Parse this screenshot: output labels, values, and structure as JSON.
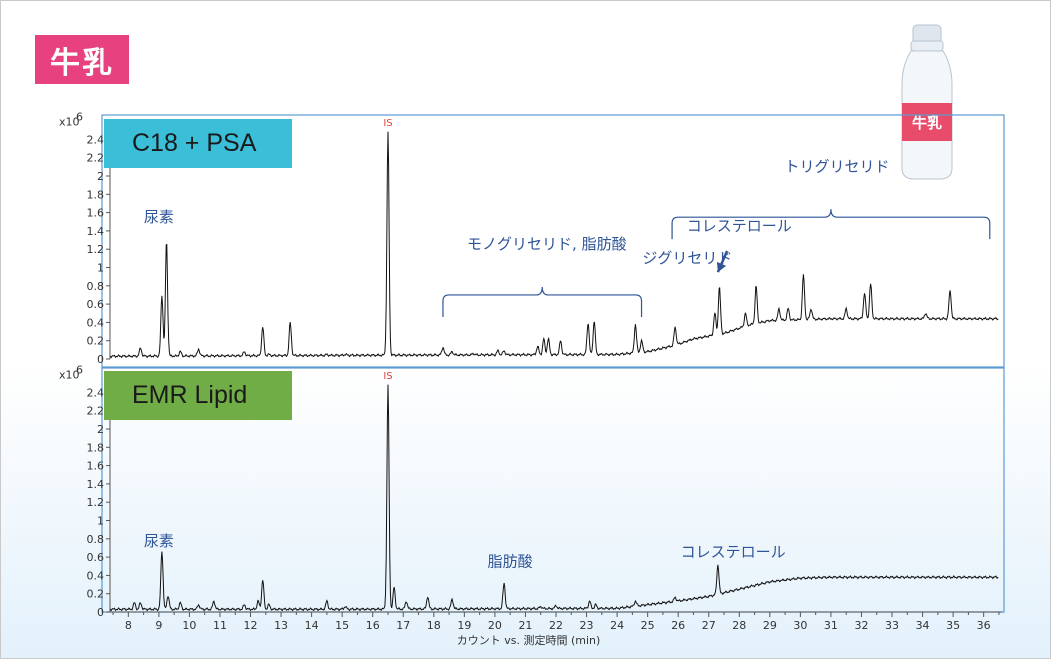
{
  "badge": "牛乳",
  "bottle_label": "牛乳",
  "colors": {
    "badge": "#e7427f",
    "frame": "#5a9bd5",
    "c18_label_bg": "#3bbfd9",
    "emr_label_bg": "#70ad47",
    "annotation": "#2f5597",
    "is_marker": "#e04040"
  },
  "chart_data": [
    {
      "type": "line",
      "method_label": "C18 + PSA",
      "y_exponent_label": "x10",
      "y_exponent_power": "6",
      "ylim": [
        0,
        2.6
      ],
      "yticks": [
        0,
        0.2,
        0.4,
        0.6,
        0.8,
        1,
        1.2,
        1.4,
        1.6,
        1.8,
        2,
        2.2,
        2.4
      ],
      "xlim": [
        7.4,
        36.6
      ],
      "baseline": [
        [
          7.4,
          0.03
        ],
        [
          15,
          0.04
        ],
        [
          24,
          0.05
        ],
        [
          25,
          0.08
        ],
        [
          25.9,
          0.15
        ],
        [
          26.5,
          0.22
        ],
        [
          27.5,
          0.28
        ],
        [
          28.3,
          0.37
        ],
        [
          29,
          0.42
        ],
        [
          31,
          0.44
        ],
        [
          36.5,
          0.44
        ]
      ],
      "peaks": [
        [
          8.4,
          0.12
        ],
        [
          9.1,
          0.7
        ],
        [
          9.25,
          1.3
        ],
        [
          9.7,
          0.08
        ],
        [
          10.3,
          0.11
        ],
        [
          11.8,
          0.08
        ],
        [
          12.4,
          0.35
        ],
        [
          12.6,
          0.05
        ],
        [
          13.3,
          0.4
        ],
        [
          14.5,
          0.05
        ],
        [
          15.1,
          0.05
        ],
        [
          16.5,
          2.48
        ],
        [
          18.3,
          0.13
        ],
        [
          18.6,
          0.08
        ],
        [
          19.3,
          0.06
        ],
        [
          20.1,
          0.09
        ],
        [
          20.3,
          0.09
        ],
        [
          21.4,
          0.14
        ],
        [
          21.6,
          0.22
        ],
        [
          21.75,
          0.22
        ],
        [
          22.15,
          0.2
        ],
        [
          23.05,
          0.4
        ],
        [
          23.25,
          0.42
        ],
        [
          24.6,
          0.38
        ],
        [
          24.8,
          0.2
        ],
        [
          25.9,
          0.35
        ],
        [
          27.2,
          0.5
        ],
        [
          27.35,
          0.79
        ],
        [
          28.2,
          0.5
        ],
        [
          28.55,
          0.8
        ],
        [
          29.3,
          0.55
        ],
        [
          29.6,
          0.55
        ],
        [
          30.1,
          0.92
        ],
        [
          30.35,
          0.55
        ],
        [
          31.5,
          0.55
        ],
        [
          32.1,
          0.72
        ],
        [
          32.3,
          0.82
        ],
        [
          34.1,
          0.5
        ],
        [
          34.9,
          0.75
        ]
      ],
      "is_label": {
        "text": "IS",
        "x": 16.5
      },
      "annotations": [
        {
          "text": "尿素",
          "x": 9.0,
          "y": 1.5
        },
        {
          "text": "モノグリセリド, 脂肪酸",
          "x": 21.7,
          "y": 1.2
        },
        {
          "text": "コレステロール",
          "x": 28.0,
          "y": 1.4
        },
        {
          "text": "ジグリセリド",
          "x": 26.3,
          "y": 1.05
        },
        {
          "text": "トリグリセリド",
          "x": 31.2,
          "y": 2.05
        }
      ],
      "brackets": [
        {
          "x1": 18.3,
          "x2": 24.8,
          "y": 0.7
        },
        {
          "x1": 25.8,
          "x2": 36.2,
          "y": 1.55
        }
      ],
      "arrow": {
        "from": [
          27.6,
          1.18
        ],
        "to": [
          27.3,
          0.95
        ]
      }
    },
    {
      "type": "line",
      "method_label": "EMR Lipid",
      "y_exponent_label": "x10",
      "y_exponent_power": "6",
      "ylim": [
        0,
        2.6
      ],
      "yticks": [
        0,
        0.2,
        0.4,
        0.6,
        0.8,
        1,
        1.2,
        1.4,
        1.6,
        1.8,
        2,
        2.2,
        2.4
      ],
      "xlim": [
        7.4,
        36.6
      ],
      "xticks": [
        8,
        9,
        10,
        11,
        12,
        13,
        14,
        15,
        16,
        17,
        18,
        19,
        20,
        21,
        22,
        23,
        24,
        25,
        26,
        27,
        28,
        29,
        30,
        31,
        32,
        33,
        34,
        35,
        36
      ],
      "xlabel": "カウント vs. 測定時間 (min)",
      "baseline": [
        [
          7.4,
          0.03
        ],
        [
          15,
          0.03
        ],
        [
          24,
          0.04
        ],
        [
          25,
          0.08
        ],
        [
          26,
          0.12
        ],
        [
          27,
          0.17
        ],
        [
          28,
          0.25
        ],
        [
          29,
          0.33
        ],
        [
          30,
          0.37
        ],
        [
          31,
          0.38
        ],
        [
          36.5,
          0.38
        ]
      ],
      "peaks": [
        [
          8.2,
          0.1
        ],
        [
          8.4,
          0.1
        ],
        [
          9.1,
          0.67
        ],
        [
          9.3,
          0.18
        ],
        [
          9.7,
          0.1
        ],
        [
          10.3,
          0.08
        ],
        [
          10.8,
          0.12
        ],
        [
          11.8,
          0.08
        ],
        [
          12.25,
          0.12
        ],
        [
          12.4,
          0.35
        ],
        [
          12.6,
          0.08
        ],
        [
          14.5,
          0.12
        ],
        [
          15.1,
          0.06
        ],
        [
          16.5,
          2.48
        ],
        [
          16.7,
          0.27
        ],
        [
          17.1,
          0.12
        ],
        [
          17.8,
          0.17
        ],
        [
          18.6,
          0.14
        ],
        [
          20.3,
          0.32
        ],
        [
          21.5,
          0.06
        ],
        [
          22,
          0.07
        ],
        [
          23.1,
          0.12
        ],
        [
          23.3,
          0.08
        ],
        [
          24.6,
          0.12
        ],
        [
          25.9,
          0.16
        ],
        [
          27.3,
          0.52
        ]
      ],
      "is_label": {
        "text": "IS",
        "x": 16.5
      },
      "annotations": [
        {
          "text": "尿素",
          "x": 9.0,
          "y": 0.72
        },
        {
          "text": "脂肪酸",
          "x": 20.5,
          "y": 0.5
        },
        {
          "text": "コレステロール",
          "x": 27.8,
          "y": 0.6
        }
      ]
    }
  ]
}
